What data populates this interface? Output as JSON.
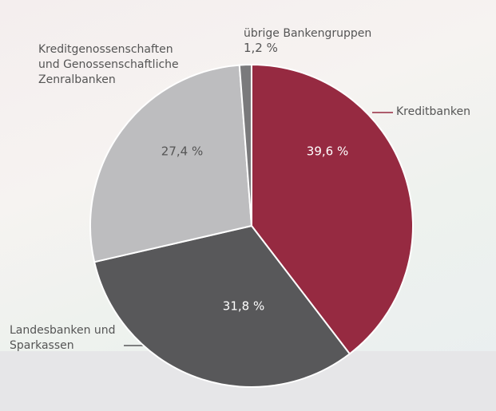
{
  "chart_data": {
    "type": "pie",
    "categories": [
      "Kreditbanken",
      "Landesbanken und\nSparkassen",
      "Kreditgenossenschaften\nund Genossenschaftliche\nZenralbanken",
      "übrige Bankengruppen"
    ],
    "values": [
      39.6,
      31.8,
      27.4,
      1.2
    ],
    "value_labels": [
      "39,6 %",
      "31,8 %",
      "27,4 %",
      "1,2 %"
    ],
    "colors": [
      "#962a41",
      "#58585a",
      "#bdbdbf",
      "#7a7a7c"
    ]
  }
}
